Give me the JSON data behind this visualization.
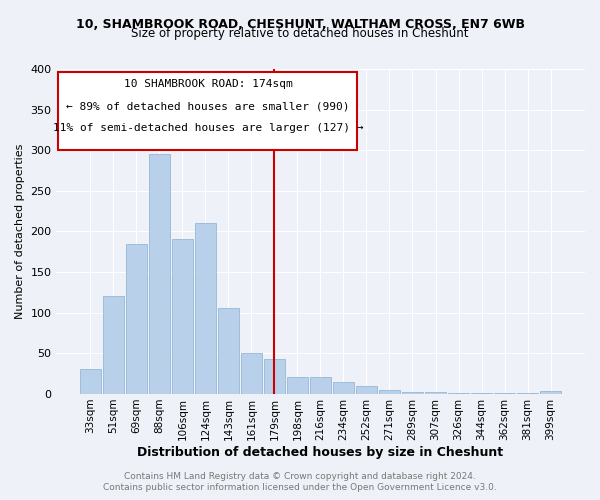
{
  "title": "10, SHAMBROOK ROAD, CHESHUNT, WALTHAM CROSS, EN7 6WB",
  "subtitle": "Size of property relative to detached houses in Cheshunt",
  "xlabel": "Distribution of detached houses by size in Cheshunt",
  "ylabel": "Number of detached properties",
  "footer_line1": "Contains HM Land Registry data © Crown copyright and database right 2024.",
  "footer_line2": "Contains public sector information licensed under the Open Government Licence v3.0.",
  "annotation_line1": "10 SHAMBROOK ROAD: 174sqm",
  "annotation_line2": "← 89% of detached houses are smaller (990)",
  "annotation_line3": "11% of semi-detached houses are larger (127) →",
  "categories": [
    "33sqm",
    "51sqm",
    "69sqm",
    "88sqm",
    "106sqm",
    "124sqm",
    "143sqm",
    "161sqm",
    "179sqm",
    "198sqm",
    "216sqm",
    "234sqm",
    "252sqm",
    "271sqm",
    "289sqm",
    "307sqm",
    "326sqm",
    "344sqm",
    "362sqm",
    "381sqm",
    "399sqm"
  ],
  "values": [
    30,
    120,
    185,
    295,
    190,
    210,
    105,
    50,
    43,
    21,
    21,
    14,
    10,
    4,
    2,
    2,
    1,
    1,
    1,
    1,
    3
  ],
  "bar_color": "#b8d0ea",
  "vline_x": 8,
  "ylim": [
    0,
    400
  ],
  "yticks": [
    0,
    50,
    100,
    150,
    200,
    250,
    300,
    350,
    400
  ],
  "background_color": "#eef2f8",
  "annotation_box_color": "#cc0000",
  "vline_color": "#cc0000"
}
